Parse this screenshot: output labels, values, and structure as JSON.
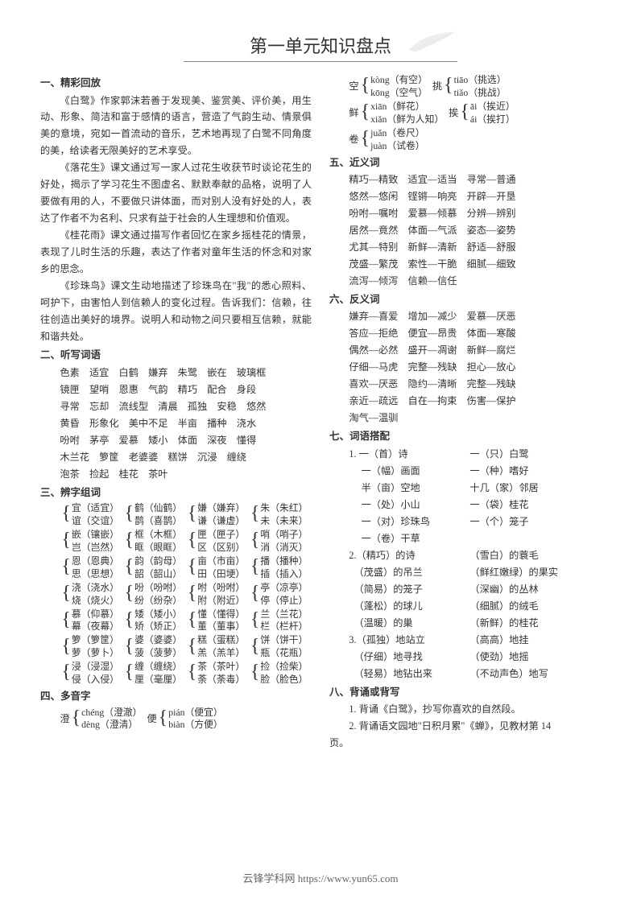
{
  "title": "第一单元知识盘点",
  "footer": "云锋学科网 https://www.yun65.com",
  "s1": {
    "head": "一、精彩回放",
    "p1": "《白鹭》作家郭沫若善于发现美、鉴赏美、评价美，用生动、形象、简洁和富于感情的语言，营造了气韵生动、情景俱美的意境，宛如一首流动的音乐，艺术地再现了白鹭不同角度的美，给读者无限美好的艺术享受。",
    "p2": "《落花生》课文通过写一家人过花生收获节时谈论花生的好处，揭示了学习花生不图虚名、默默奉献的品格，说明了人要做有用的人，不要做只讲体面，而对别人没有好处的人，表达了作者不为名利、只求有益于社会的人生理想和价值观。",
    "p3": "《桂花雨》课文通过描写作者回忆在家乡摇桂花的情景，表现了儿时生活的乐趣，表达了作者对童年生活的怀念和对家乡的思念。",
    "p4": "《珍珠鸟》课文生动地描述了珍珠鸟在\"我\"的悉心照料、呵护下，由害怕人到信赖人的变化过程。告诉我们：信赖，往往创造出美好的境界。说明人和动物之间只要相互信赖，就能和谐共处。"
  },
  "s2": {
    "head": "二、听写词语",
    "l1": "色素　适宜　白鹤　嫌弃　朱鹭　嵌在　玻璃框",
    "l2": "镜匣　望哨　恩惠　气韵　精巧　配合　身段",
    "l3": "寻常　忘却　流线型　清晨　孤独　安稳　悠然",
    "l4": "黄昏　形象化　美中不足　半亩　播种　浇水",
    "l5": "吩咐　茅亭　爱慕　矮小　体面　深夜　懂得",
    "l6": "木兰花　箩筐　老婆婆　糕饼　沉浸　缠绕",
    "l7": "泡茶　捡起　桂花　茶叶"
  },
  "s3": {
    "head": "三、辨字组词",
    "rows": [
      [
        {
          "a": "宜（适宜）",
          "b": "谊（交谊）"
        },
        {
          "a": "鹤（仙鹤）",
          "b": "鹊（喜鹊）"
        },
        {
          "a": "嫌（嫌弃）",
          "b": "谦（谦虚）"
        },
        {
          "a": "朱（朱红）",
          "b": "未（未来）"
        }
      ],
      [
        {
          "a": "嵌（镶嵌）",
          "b": "岂（岂然）"
        },
        {
          "a": "框（木框）",
          "b": "眶（眼眶）"
        },
        {
          "a": "匣（匣子）",
          "b": "区（区别）"
        },
        {
          "a": "哨（哨子）",
          "b": "消（消灭）"
        }
      ],
      [
        {
          "a": "恩（恩典）",
          "b": "思（思想）"
        },
        {
          "a": "韵（韵母）",
          "b": "韶（韶山）"
        },
        {
          "a": "亩（市亩）",
          "b": "田（田埂）"
        },
        {
          "a": "播（播种）",
          "b": "插（插入）"
        }
      ],
      [
        {
          "a": "浇（浇水）",
          "b": "烧（烧火）"
        },
        {
          "a": "吩（吩咐）",
          "b": "纷（纷杂）"
        },
        {
          "a": "咐（吩咐）",
          "b": "附（附近）"
        },
        {
          "a": "亭（凉亭）",
          "b": "停（停止）"
        }
      ],
      [
        {
          "a": "慕（仰慕）",
          "b": "幕（夜幕）"
        },
        {
          "a": "矮（矮小）",
          "b": "矫（矫正）"
        },
        {
          "a": "懂（懂得）",
          "b": "董（董事）"
        },
        {
          "a": "兰（兰花）",
          "b": "栏（栏杆）"
        }
      ],
      [
        {
          "a": "箩（箩筐）",
          "b": "萝（萝卜）"
        },
        {
          "a": "婆（婆婆）",
          "b": "菠（菠萝）"
        },
        {
          "a": "糕（蛋糕）",
          "b": "羔（羔羊）"
        },
        {
          "a": "饼（饼干）",
          "b": "瓶（花瓶）"
        }
      ],
      [
        {
          "a": "浸（浸湿）",
          "b": "侵（入侵）"
        },
        {
          "a": "缠（缠绕）",
          "b": "厘（毫厘）"
        },
        {
          "a": "茶（茶叶）",
          "b": "荼（荼毒）"
        },
        {
          "a": "捡（捡柴）",
          "b": "脸（脸色）"
        }
      ]
    ]
  },
  "s4": {
    "head": "四、多音字",
    "row1": [
      {
        "label": "澄",
        "a": "chéng（澄澈）",
        "b": "dèng（澄清）"
      },
      {
        "label": "便",
        "a": "pián（便宜）",
        "b": "biàn（方便）"
      }
    ],
    "row2": [
      {
        "label": "空",
        "a": "kòng（有空）",
        "b": "kōng（空气）"
      },
      {
        "label": "挑",
        "a": "tiāo（挑选）",
        "b": "tiǎo（挑战）"
      }
    ],
    "row3": [
      {
        "label": "鲜",
        "a": "xiān（鲜花）",
        "b": "xiǎn（鲜为人知）"
      },
      {
        "label": "挨",
        "a": "āi（挨近）",
        "b": "ái（挨打）"
      }
    ],
    "row4": [
      {
        "label": "卷",
        "a": "juǎn（卷尺）",
        "b": "juàn（试卷）"
      }
    ]
  },
  "s5": {
    "head": "五、近义词",
    "lines": [
      "精巧—精致　适宜—适当　寻常—普通",
      "悠然—悠闲　铿锵—响亮　开辟—开垦",
      "吩咐—嘱咐　爱慕—倾慕　分辨—辨别",
      "居然—竟然　体面—气派　姿态—姿势",
      "尤其—特别　新鲜—清新　舒适—舒服",
      "茂盛—繁茂　索性—干脆　细腻—细致",
      "流泻—倾泻　信赖—信任"
    ]
  },
  "s6": {
    "head": "六、反义词",
    "lines": [
      "嫌弃—喜爱　增加—减少　爱慕—厌恶",
      "答应—拒绝　便宜—昂贵　体面—寒酸",
      "偶然—必然　盛开—凋谢　新鲜—腐烂",
      "仔细—马虎　完整—残缺　担心—放心",
      "喜欢—厌恶　隐约—清晰　完整—残缺",
      "亲近—疏远　自在—拘束　伤害—保护",
      "淘气—温驯"
    ]
  },
  "s7": {
    "head": "七、词语搭配",
    "g1": [
      {
        "l": "1. 一（首）诗",
        "r": "一（只）白鹭"
      },
      {
        "l": "　 一（幅）画面",
        "r": "一（种）嗜好"
      },
      {
        "l": "　 半（亩）空地",
        "r": "十几（家）邻居"
      },
      {
        "l": "　 一（处）小山",
        "r": "一（袋）桂花"
      },
      {
        "l": "　 一（对）珍珠鸟",
        "r": "一（个）笼子"
      },
      {
        "l": "　 一（卷）干草",
        "r": ""
      }
    ],
    "g2": [
      {
        "l": "2.（精巧）的诗",
        "r": "（雪白）的蓑毛"
      },
      {
        "l": "　（茂盛）的吊兰",
        "r": "（鲜红嫩绿）的果实"
      },
      {
        "l": "　（简易）的笼子",
        "r": "（深幽）的丛林"
      },
      {
        "l": "　（蓬松）的球儿",
        "r": "（细腻）的绒毛"
      },
      {
        "l": "　（温暖）的巢",
        "r": "（新鲜）的桂花"
      }
    ],
    "g3": [
      {
        "l": "3.（孤独）地站立",
        "r": "（高高）地挂"
      },
      {
        "l": "　（仔细）地寻找",
        "r": "（使劲）地摇"
      },
      {
        "l": "　（轻易）地钻出来",
        "r": "（不动声色）地写"
      }
    ]
  },
  "s8": {
    "head": "八、背诵或背写",
    "l1": "1. 背诵《白鹭》，抄写你喜欢的自然段。",
    "l2": "2. 背诵语文园地\"日积月累\"《蝉》，见教材第 14",
    "l3": "页。"
  }
}
